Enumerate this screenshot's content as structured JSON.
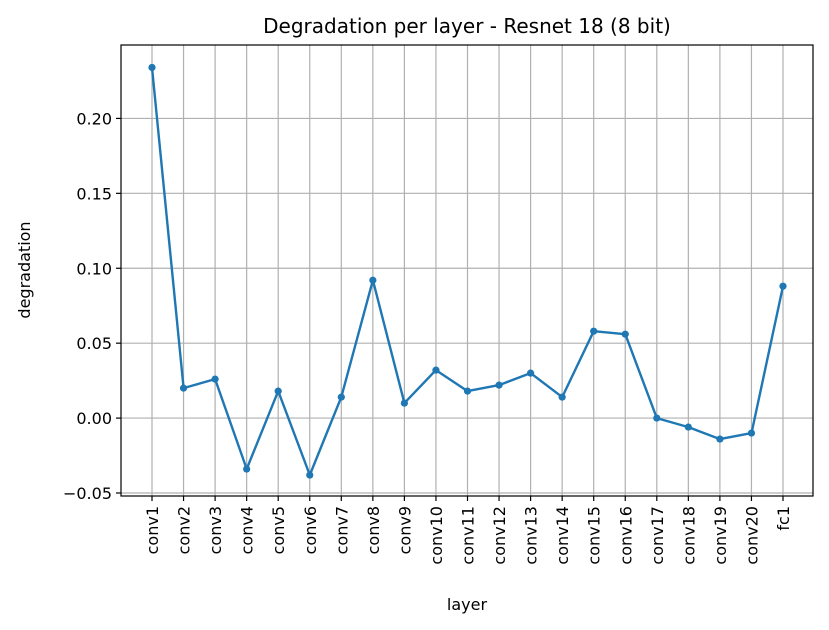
{
  "chart_data": {
    "type": "line",
    "title": "Degradation per layer - Resnet 18 (8 bit)",
    "xlabel": "layer",
    "ylabel": "degradation",
    "categories": [
      "conv1",
      "conv2",
      "conv3",
      "conv4",
      "conv5",
      "conv6",
      "conv7",
      "conv8",
      "conv9",
      "conv10",
      "conv11",
      "conv12",
      "conv13",
      "conv14",
      "conv15",
      "conv16",
      "conv17",
      "conv18",
      "conv19",
      "conv20",
      "fc1"
    ],
    "series": [
      {
        "values": [
          0.234,
          0.02,
          0.026,
          -0.034,
          0.018,
          -0.038,
          0.014,
          0.092,
          0.01,
          0.032,
          0.018,
          0.022,
          0.03,
          0.014,
          0.058,
          0.056,
          0.0,
          -0.006,
          -0.014,
          -0.01,
          0.088
        ],
        "color": "#1f77b4"
      }
    ],
    "yticks": [
      -0.05,
      0.0,
      0.05,
      0.1,
      0.15,
      0.2
    ],
    "ytick_labels": [
      "−0.05",
      "0.00",
      "0.05",
      "0.10",
      "0.15",
      "0.20"
    ],
    "ylim": [
      -0.052,
      0.249
    ],
    "grid": true,
    "legend": "none"
  }
}
